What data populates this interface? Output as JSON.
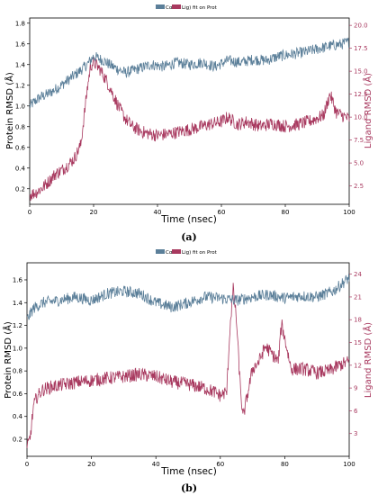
{
  "colors": {
    "protein": "#5b7f99",
    "ligand": "#a8395f",
    "axis": "#000000"
  },
  "chart_data": [
    {
      "type": "line",
      "panel": "a",
      "legend": [
        "Cα",
        "Lig) fit on Prot"
      ],
      "xlabel": "Time (nsec)",
      "ylabel_left": "Protein RMSD (Å)",
      "ylabel_right": "Ligand RMSD (Å)",
      "xlim": [
        0,
        100
      ],
      "ylim_left": [
        0.05,
        1.85
      ],
      "ylim_right": [
        0.5,
        20.8
      ],
      "x_ticks": [
        "0",
        "20",
        "40",
        "60",
        "80",
        "100"
      ],
      "y_ticks_left": [
        "0.2",
        "0.4",
        "0.6",
        "0.8",
        "1.0",
        "1.2",
        "1.4",
        "1.6",
        "1.8"
      ],
      "y_ticks_right": [
        "2.5",
        "5.0",
        "7.5",
        "10.0",
        "12.5",
        "15.0",
        "17.5",
        "20.0"
      ],
      "series": [
        {
          "axis": "left",
          "x": [
            0,
            3,
            6,
            9,
            12,
            15,
            18,
            20,
            23,
            26,
            30,
            34,
            38,
            42,
            46,
            50,
            54,
            58,
            62,
            66,
            70,
            74,
            78,
            82,
            86,
            90,
            94,
            98,
            100
          ],
          "values": [
            1.0,
            1.08,
            1.12,
            1.18,
            1.25,
            1.32,
            1.4,
            1.48,
            1.44,
            1.38,
            1.32,
            1.36,
            1.4,
            1.38,
            1.42,
            1.4,
            1.42,
            1.38,
            1.44,
            1.42,
            1.45,
            1.44,
            1.48,
            1.5,
            1.52,
            1.55,
            1.58,
            1.6,
            1.62
          ]
        },
        {
          "axis": "right",
          "x": [
            0,
            2,
            4,
            6,
            8,
            10,
            12,
            14,
            16,
            18,
            19,
            20,
            22,
            24,
            26,
            28,
            30,
            32,
            34,
            36,
            40,
            44,
            48,
            52,
            56,
            60,
            62,
            65,
            68,
            72,
            76,
            80,
            84,
            88,
            92,
            94,
            96,
            100
          ],
          "values": [
            1.5,
            1.8,
            2.3,
            3.0,
            3.8,
            4.2,
            4.8,
            5.5,
            7.0,
            13.0,
            15.5,
            16.0,
            15.2,
            14.0,
            12.5,
            11.0,
            9.8,
            9.0,
            8.6,
            8.3,
            8.0,
            8.2,
            8.5,
            8.8,
            9.2,
            9.5,
            10.0,
            9.2,
            9.5,
            9.0,
            9.3,
            9.0,
            9.2,
            9.6,
            10.2,
            12.5,
            10.5,
            9.8
          ]
        }
      ]
    },
    {
      "type": "line",
      "panel": "b",
      "legend": [
        "Cα",
        "Lig) fit on Prot"
      ],
      "xlabel": "Time (nsec)",
      "ylabel_left": "Protein RMSD (Å)",
      "ylabel_right": "Ligand RMSD (Å)",
      "xlim": [
        0,
        100
      ],
      "ylim_left": [
        0.05,
        1.75
      ],
      "ylim_right": [
        0,
        25.5
      ],
      "x_ticks": [
        "0",
        "20",
        "40",
        "60",
        "80",
        "100"
      ],
      "y_ticks_left": [
        "0.2",
        "0.4",
        "0.6",
        "0.8",
        "1.0",
        "1.2",
        "1.4",
        "1.6"
      ],
      "y_ticks_right": [
        "3",
        "6",
        "9",
        "12",
        "15",
        "18",
        "21",
        "24"
      ],
      "series": [
        {
          "axis": "left",
          "x": [
            0,
            2,
            5,
            10,
            15,
            20,
            25,
            30,
            35,
            40,
            45,
            50,
            55,
            60,
            65,
            70,
            75,
            80,
            85,
            90,
            95,
            100
          ],
          "values": [
            1.25,
            1.35,
            1.4,
            1.42,
            1.45,
            1.42,
            1.48,
            1.5,
            1.48,
            1.4,
            1.36,
            1.4,
            1.45,
            1.44,
            1.42,
            1.45,
            1.47,
            1.44,
            1.46,
            1.45,
            1.5,
            1.62
          ]
        },
        {
          "axis": "right",
          "x": [
            0,
            1,
            2,
            3,
            5,
            8,
            12,
            16,
            20,
            25,
            30,
            35,
            40,
            45,
            50,
            55,
            58,
            60,
            62,
            63,
            64,
            65,
            66,
            67,
            70,
            72,
            74,
            76,
            78,
            79,
            80,
            82,
            86,
            90,
            94,
            97,
            100
          ],
          "values": [
            1.0,
            2.5,
            6.5,
            7.8,
            8.8,
            9.2,
            9.5,
            9.8,
            10.0,
            10.3,
            10.5,
            10.8,
            10.5,
            9.8,
            9.5,
            9.0,
            8.5,
            8.0,
            8.5,
            17.0,
            22.0,
            18.0,
            10.5,
            5.0,
            11.5,
            12.5,
            14.5,
            13.5,
            12.5,
            17.5,
            15.5,
            11.5,
            11.5,
            11.0,
            11.3,
            12.0,
            12.5
          ]
        }
      ]
    }
  ],
  "captions": [
    "(a)",
    "(b)"
  ]
}
